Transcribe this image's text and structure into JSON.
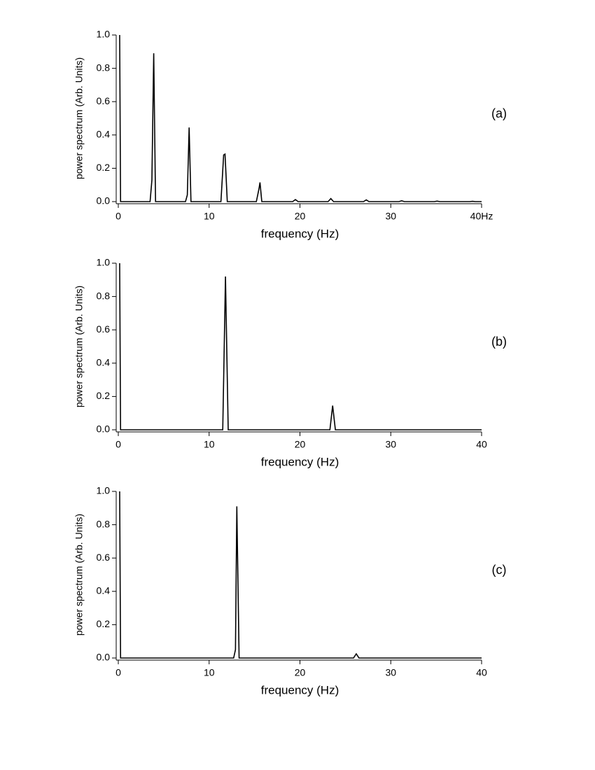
{
  "chart_data": [
    {
      "type": "line",
      "panel_label": "(a)",
      "x_label": "frequency (Hz)",
      "y_label": "power spectrum (Arb. Units)",
      "xlim": [
        0,
        40
      ],
      "ylim": [
        0,
        1
      ],
      "xticks": [
        0,
        10,
        20,
        30,
        {
          "value": 40,
          "label": "40Hz"
        }
      ],
      "yticks": [
        {
          "value": 0,
          "label": "0.0"
        },
        0.2,
        0.4,
        0.6,
        0.8,
        {
          "value": 1,
          "label": "1.0"
        }
      ],
      "color": "#000000",
      "x": [
        0.15,
        0.25,
        3.5,
        3.7,
        3.9,
        4.1,
        7.4,
        7.6,
        7.8,
        8.0,
        11.3,
        11.6,
        11.75,
        12.0,
        15.2,
        15.5,
        15.6,
        15.8,
        19.2,
        19.5,
        19.8,
        23.1,
        23.4,
        23.7,
        27.0,
        27.3,
        27.6,
        30.9,
        31.2,
        31.5,
        34.8,
        35.1,
        35.4,
        38.7,
        39.0,
        39.3,
        40
      ],
      "values": [
        1.0,
        0,
        0,
        0.13,
        0.89,
        0,
        0,
        0.04,
        0.445,
        0,
        0,
        0.28,
        0.285,
        0,
        0,
        0.08,
        0.115,
        0,
        0,
        0.012,
        0,
        0,
        0.018,
        0,
        0,
        0.01,
        0,
        0,
        0.005,
        0,
        0,
        0.003,
        0,
        0,
        0.002,
        0,
        0
      ]
    },
    {
      "type": "line",
      "panel_label": "(b)",
      "x_label": "frequency (Hz)",
      "y_label": "power spectrum (Arb. Units)",
      "xlim": [
        0,
        40
      ],
      "ylim": [
        0,
        1
      ],
      "xticks": [
        0,
        10,
        20,
        30,
        40
      ],
      "yticks": [
        {
          "value": 0,
          "label": "0.0"
        },
        0.2,
        0.4,
        0.6,
        0.8,
        {
          "value": 1,
          "label": "1.0"
        }
      ],
      "color": "#000000",
      "x": [
        0.15,
        0.25,
        11.5,
        11.8,
        12.1,
        23.3,
        23.6,
        23.9,
        40
      ],
      "values": [
        1.0,
        0,
        0,
        0.92,
        0,
        0,
        0.145,
        0,
        0
      ]
    },
    {
      "type": "line",
      "panel_label": "(c)",
      "x_label": "frequency (Hz)",
      "y_label": "power spectrum (Arb. Units)",
      "xlim": [
        0,
        40
      ],
      "ylim": [
        0,
        1
      ],
      "xticks": [
        0,
        10,
        20,
        30,
        40
      ],
      "yticks": [
        {
          "value": 0,
          "label": "0.0"
        },
        0.2,
        0.4,
        0.6,
        0.8,
        {
          "value": 1,
          "label": "1.0"
        }
      ],
      "color": "#000000",
      "x": [
        0.15,
        0.25,
        12.7,
        12.9,
        13.05,
        13.3,
        25.9,
        26.2,
        26.5,
        40
      ],
      "values": [
        1.0,
        0,
        0,
        0.05,
        0.91,
        0,
        0,
        0.025,
        0,
        0
      ]
    }
  ]
}
